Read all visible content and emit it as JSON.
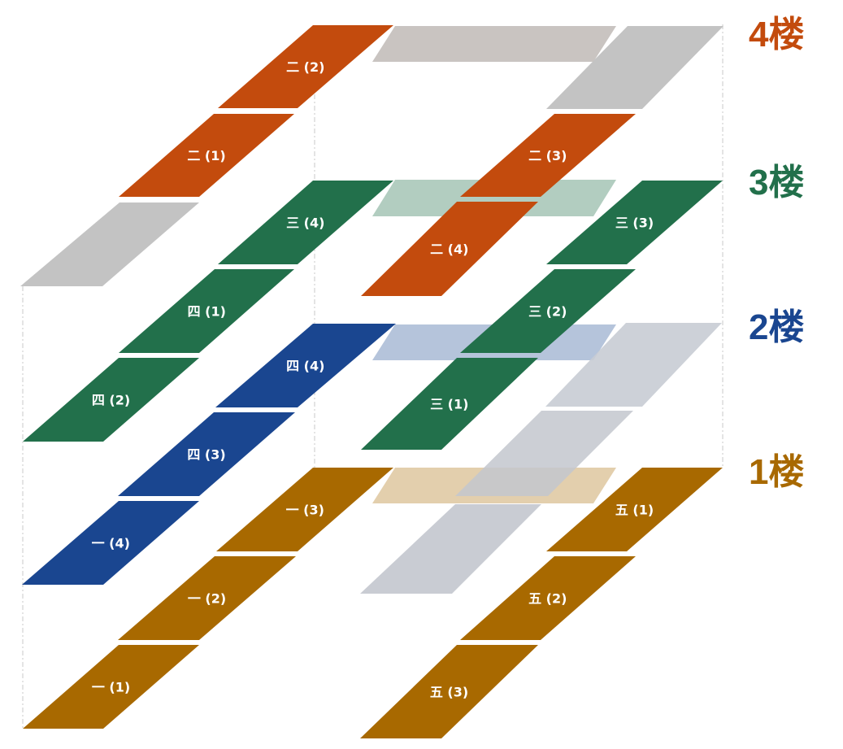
{
  "colors": {
    "floor4": "#c34b0d",
    "floor3": "#22704b",
    "floor2": "#1a4690",
    "floor1": "#a86900",
    "gray": "#c3c3c3"
  },
  "floors": [
    {
      "id": "4",
      "label": "4楼"
    },
    {
      "id": "3",
      "label": "3楼"
    },
    {
      "id": "2",
      "label": "2楼"
    },
    {
      "id": "1",
      "label": "1楼"
    }
  ],
  "tiles": [
    {
      "name": "tile-er-2",
      "label": "二 (2)",
      "floor": "4"
    },
    {
      "name": "tile-er-1",
      "label": "二 (1)",
      "floor": "4"
    },
    {
      "name": "tile-er-3",
      "label": "二 (3)",
      "floor": "4"
    },
    {
      "name": "tile-er-4",
      "label": "二 (4)",
      "floor": "4"
    },
    {
      "name": "tile-san-4",
      "label": "三 (4)",
      "floor": "3"
    },
    {
      "name": "tile-san-3",
      "label": "三 (3)",
      "floor": "3"
    },
    {
      "name": "tile-si-1",
      "label": "四 (1)",
      "floor": "3"
    },
    {
      "name": "tile-san-2",
      "label": "三 (2)",
      "floor": "3"
    },
    {
      "name": "tile-si-2",
      "label": "四 (2)",
      "floor": "3"
    },
    {
      "name": "tile-san-1",
      "label": "三 (1)",
      "floor": "3"
    },
    {
      "name": "tile-si-4",
      "label": "四 (4)",
      "floor": "2"
    },
    {
      "name": "tile-si-3",
      "label": "四 (3)",
      "floor": "2"
    },
    {
      "name": "tile-yi-4",
      "label": "一 (4)",
      "floor": "2"
    },
    {
      "name": "tile-yi-3",
      "label": "一 (3)",
      "floor": "1"
    },
    {
      "name": "tile-yi-2",
      "label": "一 (2)",
      "floor": "1"
    },
    {
      "name": "tile-yi-1",
      "label": "一 (1)",
      "floor": "1"
    },
    {
      "name": "tile-wu-1",
      "label": "五 (1)",
      "floor": "1"
    },
    {
      "name": "tile-wu-2",
      "label": "五 (2)",
      "floor": "1"
    },
    {
      "name": "tile-wu-3",
      "label": "五 (3)",
      "floor": "1"
    }
  ]
}
